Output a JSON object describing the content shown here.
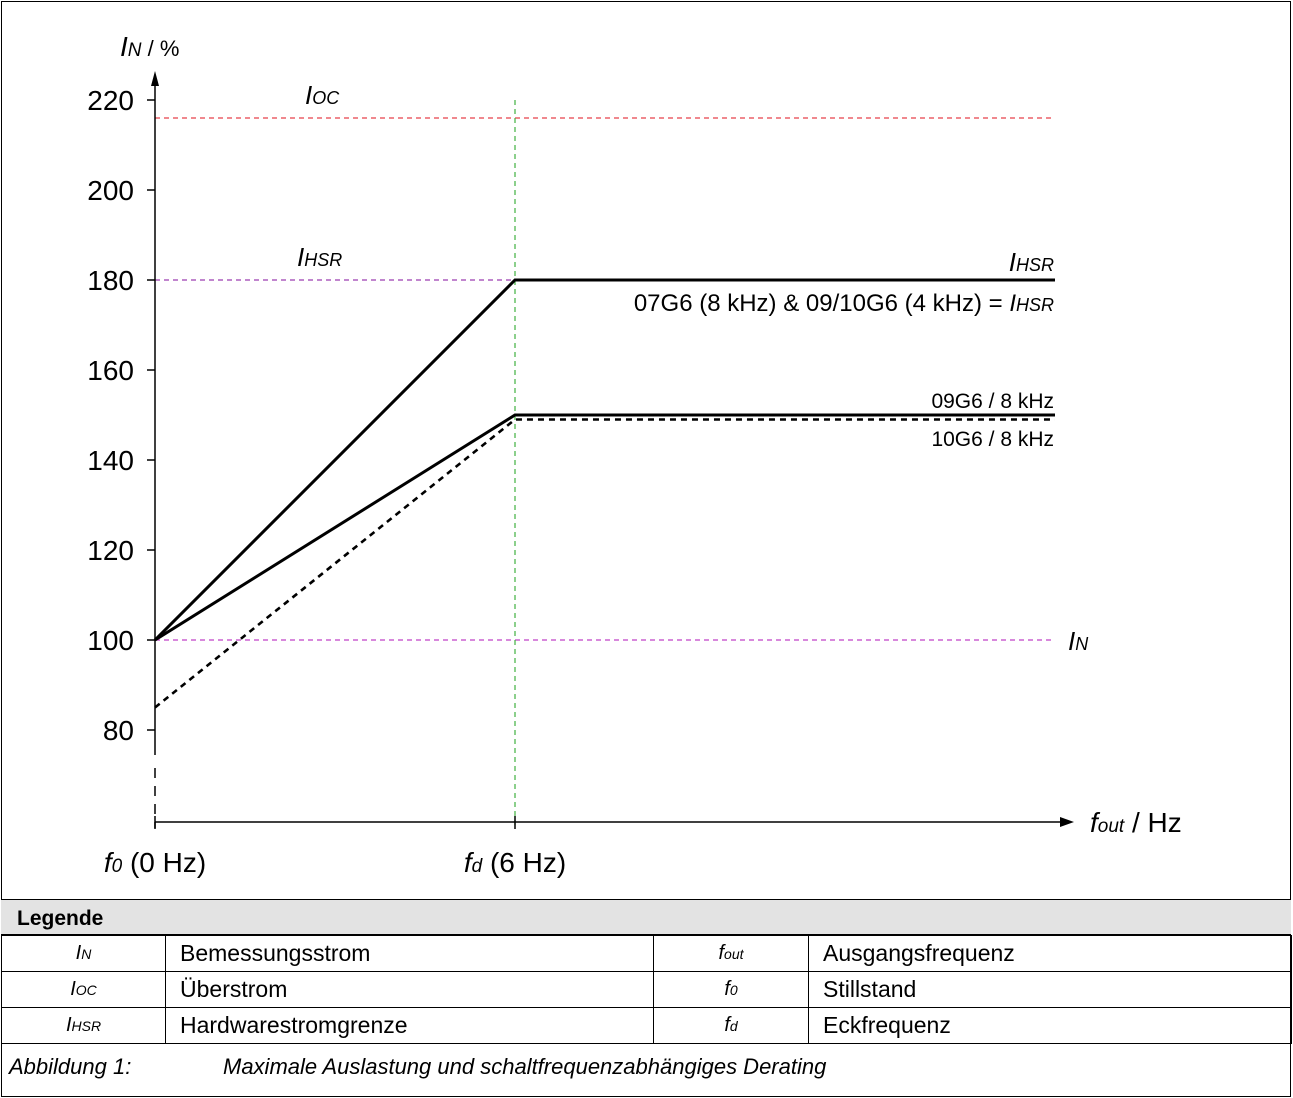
{
  "chart_data": {
    "type": "line",
    "ylabel": {
      "symbol": "I",
      "sub": "N",
      "unit": " / %"
    },
    "xlabel": {
      "symbol": "f",
      "sub": "out",
      "unit": " / Hz"
    },
    "yticks": [
      80,
      100,
      120,
      140,
      160,
      180,
      200,
      220
    ],
    "xticks": [
      {
        "x": 0,
        "sym": "f",
        "sub": "0",
        "text": " (0 Hz)"
      },
      {
        "x": 6,
        "sym": "f",
        "sub": "d",
        "text": " (6 Hz)"
      }
    ],
    "reference_lines": [
      {
        "y": 216,
        "name": "I_OC",
        "color": "#e8404a",
        "label_sym": "I",
        "label_sub": "OC",
        "label_pos": "left"
      },
      {
        "y": 180,
        "name": "I_HSR",
        "color": "#9c3cb0",
        "label_sym": "I",
        "label_sub": "HSR",
        "label_pos": "left"
      },
      {
        "y": 100,
        "name": "I_N",
        "color": "#c040c8",
        "label_sym": "I",
        "label_sub": "N",
        "label_pos": "right"
      }
    ],
    "vertical_line": {
      "x": 6,
      "color": "#40b040"
    },
    "series": [
      {
        "label": "07G6 (8 kHz) & 09/10G6 (4 kHz) = I_HSR",
        "style": "solid",
        "points": [
          [
            0,
            100
          ],
          [
            6,
            180
          ],
          [
            15,
            180
          ]
        ]
      },
      {
        "label": "09G6 / 8 kHz",
        "style": "solid",
        "points": [
          [
            0,
            100
          ],
          [
            6,
            150
          ],
          [
            15,
            150
          ]
        ]
      },
      {
        "label": "10G6 / 8 kHz",
        "style": "dashed",
        "points": [
          [
            0,
            85
          ],
          [
            6,
            149
          ],
          [
            15,
            149
          ]
        ]
      }
    ],
    "annotations": {
      "ihsr_line_label": {
        "sym": "I",
        "sub": "HSR"
      },
      "line_label_07": {
        "text": "07G6 (8 kHz) & 09/10G6 (4 kHz) = ",
        "sym": "I",
        "sub": "HSR"
      },
      "line_label_09": "09G6 / 8 kHz",
      "line_label_10": "10G6 / 8 kHz"
    }
  },
  "legend": {
    "title": "Legende",
    "rows": [
      {
        "sym1": "I",
        "sub1": "N",
        "desc1": "Bemessungsstrom",
        "sym2": "f",
        "sub2": "out",
        "desc2": "Ausgangsfrequenz"
      },
      {
        "sym1": "I",
        "sub1": "OC",
        "desc1": "Überstrom",
        "sym2": "f",
        "sub2": "0",
        "desc2": "Stillstand"
      },
      {
        "sym1": "I",
        "sub1": "HSR",
        "desc1": "Hardwarestromgrenze",
        "sym2": "f",
        "sub2": "d",
        "desc2": "Eckfrequenz"
      }
    ]
  },
  "caption": {
    "number": "Abbildung 1:",
    "text": "Maximale Auslastung und schaltfrequenzabhängiges Derating"
  }
}
